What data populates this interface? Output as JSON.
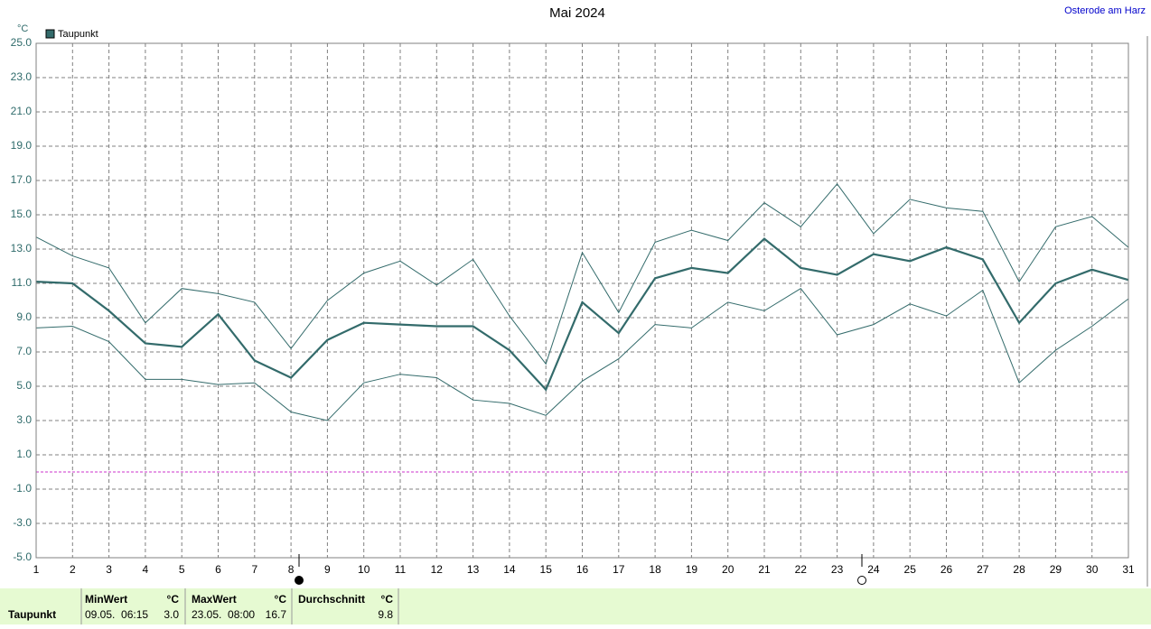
{
  "chart_data": {
    "type": "line",
    "title": "Mai 2024",
    "location": "Osterode am Harz",
    "y_unit": "°C",
    "x": [
      1,
      2,
      3,
      4,
      5,
      6,
      7,
      8,
      9,
      10,
      11,
      12,
      13,
      14,
      15,
      16,
      17,
      18,
      19,
      20,
      21,
      22,
      23,
      24,
      25,
      26,
      27,
      28,
      29,
      30,
      31
    ],
    "xlim": [
      1,
      31
    ],
    "xticks": [
      1,
      2,
      3,
      4,
      5,
      6,
      7,
      8,
      9,
      10,
      11,
      12,
      13,
      14,
      15,
      16,
      17,
      18,
      19,
      20,
      21,
      22,
      23,
      24,
      25,
      26,
      27,
      28,
      29,
      30,
      31
    ],
    "ylim": [
      -5,
      25
    ],
    "yticks": [
      {
        "value": -5,
        "label": "-5.0"
      },
      {
        "value": -3,
        "label": "-3.0"
      },
      {
        "value": -1,
        "label": "-1.0"
      },
      {
        "value": 1,
        "label": "1.0"
      },
      {
        "value": 3,
        "label": "3.0"
      },
      {
        "value": 5,
        "label": "5.0"
      },
      {
        "value": 7,
        "label": "7.0"
      },
      {
        "value": 9,
        "label": "9.0"
      },
      {
        "value": 11,
        "label": "11.0"
      },
      {
        "value": 13,
        "label": "13.0"
      },
      {
        "value": 15,
        "label": "15.0"
      },
      {
        "value": 17,
        "label": "17.0"
      },
      {
        "value": 19,
        "label": "19.0"
      },
      {
        "value": 21,
        "label": "21.0"
      },
      {
        "value": 23,
        "label": "23.0"
      },
      {
        "value": 25,
        "label": "25.0"
      }
    ],
    "grid": true,
    "zero_line_color": "#cc33cc",
    "series": [
      {
        "name": "Taupunkt",
        "color": "#336b6b",
        "values": [
          11.1,
          11.0,
          9.4,
          7.5,
          7.3,
          9.2,
          6.5,
          5.5,
          7.7,
          8.7,
          8.6,
          8.5,
          8.5,
          7.1,
          4.8,
          9.9,
          8.1,
          11.3,
          11.9,
          11.6,
          13.6,
          11.9,
          11.5,
          12.7,
          12.3,
          13.1,
          12.4,
          8.7,
          11.0,
          11.8,
          11.2
        ]
      },
      {
        "color": "#336b6b",
        "values": [
          13.7,
          12.6,
          11.9,
          8.7,
          10.7,
          10.4,
          9.9,
          7.2,
          10.0,
          11.6,
          12.3,
          10.9,
          12.4,
          9.1,
          6.3,
          12.8,
          9.3,
          13.4,
          14.1,
          13.5,
          15.7,
          14.3,
          16.8,
          13.9,
          15.9,
          15.4,
          15.2,
          11.1,
          14.3,
          14.9,
          13.1
        ]
      },
      {
        "color": "#336b6b",
        "values": [
          8.4,
          8.5,
          7.6,
          5.4,
          5.4,
          5.1,
          5.2,
          3.5,
          3.0,
          5.2,
          5.7,
          5.5,
          4.2,
          4.0,
          3.3,
          5.3,
          6.6,
          8.6,
          8.4,
          9.9,
          9.4,
          10.7,
          8.0,
          8.6,
          9.8,
          9.1,
          10.6,
          5.2,
          7.1,
          8.5,
          10.1
        ]
      }
    ]
  },
  "summary": {
    "label": "Taupunkt",
    "min": {
      "header": "MinWert",
      "unit": "°C",
      "time": "09.05.  06:15",
      "value": "3.0"
    },
    "max": {
      "header": "MaxWert",
      "unit": "°C",
      "time": "23.05.  08:00",
      "value": "16.7"
    },
    "avg": {
      "header": "Durchschnitt",
      "unit": "°C",
      "value": "9.8"
    }
  }
}
